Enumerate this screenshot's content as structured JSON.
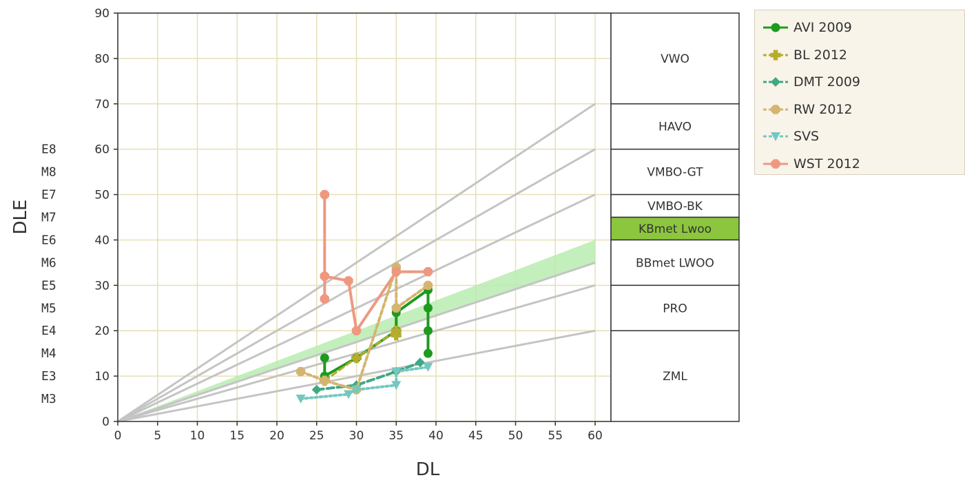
{
  "chart_data": {
    "type": "line",
    "xlabel": "DL",
    "ylabel": "DLE",
    "xlim": [
      0,
      60
    ],
    "ylim": [
      0,
      90
    ],
    "x_ticks": [
      "0",
      "5",
      "10",
      "15",
      "20",
      "25",
      "30",
      "35",
      "40",
      "45",
      "50",
      "55",
      "60"
    ],
    "y_ticks": [
      "0",
      "10",
      "20",
      "30",
      "40",
      "50",
      "60",
      "70",
      "80",
      "90"
    ],
    "grid": true,
    "legend_position": "right",
    "level_labels": [
      {
        "label": "E8",
        "value": 60
      },
      {
        "label": "M8",
        "value": 55
      },
      {
        "label": "E7",
        "value": 50
      },
      {
        "label": "M7",
        "value": 45
      },
      {
        "label": "E6",
        "value": 40
      },
      {
        "label": "M6",
        "value": 35
      },
      {
        "label": "E5",
        "value": 30
      },
      {
        "label": "M5",
        "value": 25
      },
      {
        "label": "E4",
        "value": 20
      },
      {
        "label": "M4",
        "value": 15
      },
      {
        "label": "E3",
        "value": 10
      },
      {
        "label": "M3",
        "value": 5
      }
    ],
    "reference_lines": [
      {
        "slope": 0.3333
      },
      {
        "slope": 0.5
      },
      {
        "slope": 0.5833
      },
      {
        "slope": 0.8333
      },
      {
        "slope": 1.0
      },
      {
        "slope": 1.1667
      }
    ],
    "band": {
      "slope_low": 0.5833,
      "slope_high": 0.6667,
      "color": "#b8ecb0"
    },
    "categories_panel": [
      {
        "label": "VWO",
        "from": 70,
        "to": 90,
        "highlight": false
      },
      {
        "label": "HAVO",
        "from": 60,
        "to": 70,
        "highlight": false
      },
      {
        "label": "VMBO-GT",
        "from": 50,
        "to": 60,
        "highlight": false
      },
      {
        "label": "VMBO-BK",
        "from": 45,
        "to": 50,
        "highlight": false
      },
      {
        "label": "KBmet Lwoo",
        "from": 40,
        "to": 45,
        "highlight": true
      },
      {
        "label": "BBmet LWOO",
        "from": 30,
        "to": 40,
        "highlight": false
      },
      {
        "label": "PRO",
        "from": 20,
        "to": 30,
        "highlight": false
      },
      {
        "label": "ZML",
        "from": 0,
        "to": 20,
        "highlight": false
      }
    ],
    "series": [
      {
        "name": "AVI 2009",
        "color": "#1e9a1e",
        "dash": "",
        "width": 4,
        "marker": "circle",
        "points": [
          [
            26,
            14
          ],
          [
            26,
            10
          ],
          [
            30,
            14
          ],
          [
            35,
            20
          ],
          [
            35,
            24
          ],
          [
            39,
            29
          ],
          [
            39,
            25
          ],
          [
            39,
            20
          ],
          [
            39,
            15
          ]
        ]
      },
      {
        "name": "BL 2012",
        "color": "#b5ad2c",
        "dash": "8,5",
        "width": 3,
        "marker": "cross",
        "points": [
          [
            26,
            9
          ],
          [
            30,
            14
          ],
          [
            35,
            20
          ],
          [
            35,
            19
          ]
        ]
      },
      {
        "name": "DMT 2009",
        "color": "#3fa884",
        "dash": "10,5",
        "width": 4,
        "marker": "diamond",
        "points": [
          [
            25,
            7
          ],
          [
            30,
            8
          ],
          [
            35,
            11
          ],
          [
            38,
            13
          ]
        ]
      },
      {
        "name": "RW 2012",
        "color": "#d4b570",
        "dash": "6,4",
        "width": 4,
        "marker": "octagon",
        "points": [
          [
            23,
            11
          ],
          [
            26,
            9
          ],
          [
            30,
            7
          ],
          [
            35,
            34
          ],
          [
            35,
            25
          ],
          [
            39,
            30
          ]
        ]
      },
      {
        "name": "SVS",
        "color": "#74c8c0",
        "dash": "3,4",
        "width": 4,
        "marker": "triangle-down",
        "points": [
          [
            23,
            5
          ],
          [
            29,
            6
          ],
          [
            30,
            7
          ],
          [
            35,
            8
          ],
          [
            35,
            11
          ],
          [
            39,
            12
          ]
        ]
      },
      {
        "name": "WST 2012",
        "color": "#ee9880",
        "dash": "",
        "width": 4,
        "marker": "octagon",
        "points": [
          [
            26,
            50
          ],
          [
            26,
            32
          ],
          [
            26,
            27
          ],
          [
            26,
            32
          ],
          [
            29,
            31
          ],
          [
            30,
            20
          ],
          [
            35,
            33
          ],
          [
            39,
            33
          ]
        ]
      }
    ]
  }
}
